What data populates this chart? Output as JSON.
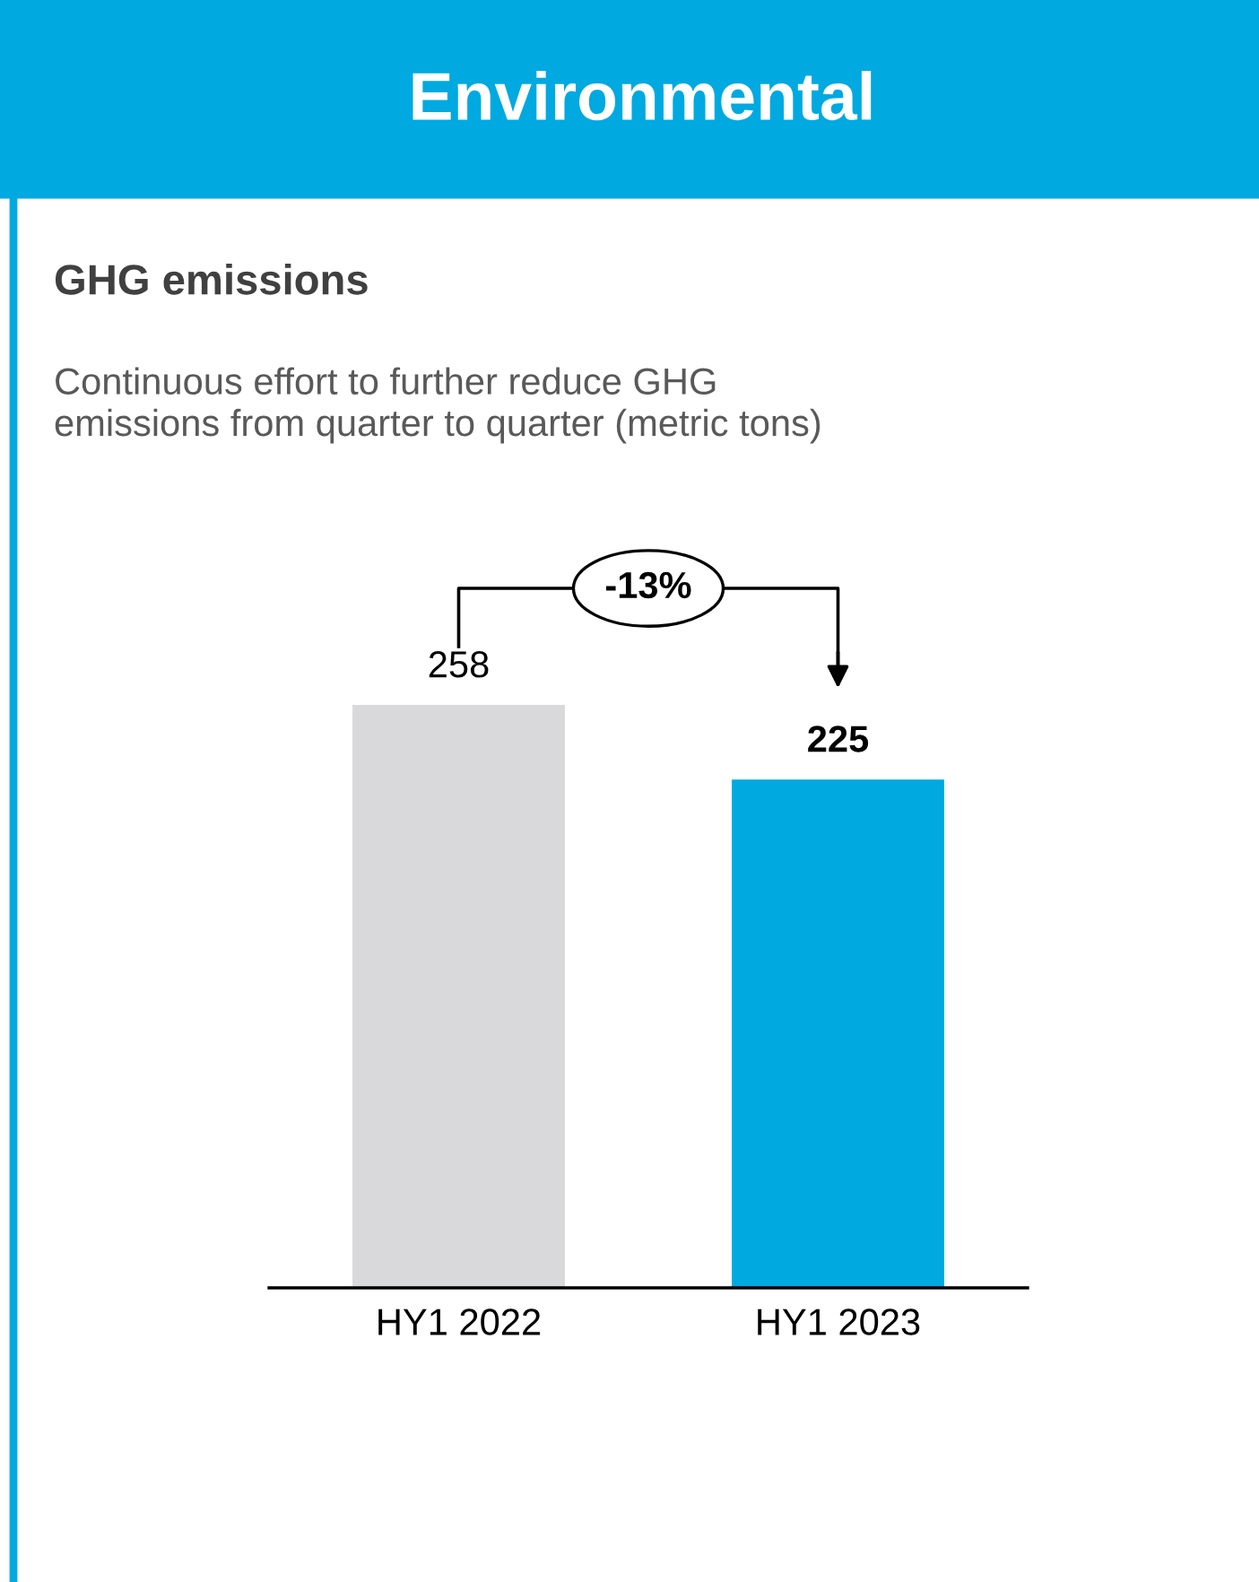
{
  "chart_data": {
    "type": "bar",
    "title": "Environmental",
    "subtitle": "GHG emissions",
    "annotations": [
      "Continuous effort to further reduce GHG\nemissions from quarter to quarter (metric tons)",
      "-13%"
    ],
    "categories": [
      "HY1 2022",
      "HY1 2023"
    ],
    "values": [
      258,
      225
    ],
    "colors": [
      "#d9d9db",
      "#00a9e0"
    ],
    "data_labels": true,
    "grid": false,
    "legend": false
  }
}
